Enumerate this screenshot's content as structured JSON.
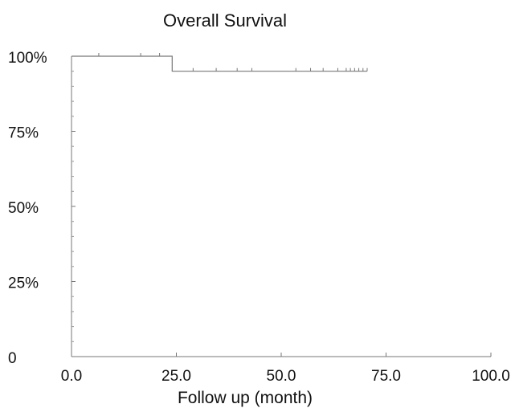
{
  "chart_data": {
    "type": "line",
    "title": "Overall Survival",
    "xlabel": "Follow up (month)",
    "ylabel": "",
    "xlim": [
      0,
      100
    ],
    "ylim": [
      0,
      100
    ],
    "x_ticks": [
      0,
      25,
      50,
      75,
      100
    ],
    "x_tick_labels": [
      "0.0",
      "25.0",
      "50.0",
      "75.0",
      "100.0"
    ],
    "y_ticks": [
      0,
      25,
      50,
      75,
      100
    ],
    "y_tick_labels": [
      "0",
      "25%",
      "50%",
      "75%",
      "100%"
    ],
    "y_minor_step": 5,
    "grid": false,
    "legend": "none",
    "series": [
      {
        "line_color": "#777777",
        "steps": [
          {
            "x": 0,
            "y": 100
          },
          {
            "x": 24,
            "y": 100
          },
          {
            "x": 24,
            "y": 95
          },
          {
            "x": 70.5,
            "y": 95
          }
        ],
        "censored": [
          {
            "x": 6.5,
            "y": 100
          },
          {
            "x": 16.5,
            "y": 100
          },
          {
            "x": 21,
            "y": 100
          },
          {
            "x": 29,
            "y": 95
          },
          {
            "x": 34.5,
            "y": 95
          },
          {
            "x": 39.5,
            "y": 95
          },
          {
            "x": 43,
            "y": 95
          },
          {
            "x": 53.5,
            "y": 95
          },
          {
            "x": 57,
            "y": 95
          },
          {
            "x": 60,
            "y": 95
          },
          {
            "x": 63.5,
            "y": 95
          },
          {
            "x": 65.5,
            "y": 95
          },
          {
            "x": 66.5,
            "y": 95
          },
          {
            "x": 67.5,
            "y": 95
          },
          {
            "x": 68.5,
            "y": 95
          },
          {
            "x": 69.5,
            "y": 95
          },
          {
            "x": 70.5,
            "y": 95
          }
        ]
      }
    ]
  }
}
